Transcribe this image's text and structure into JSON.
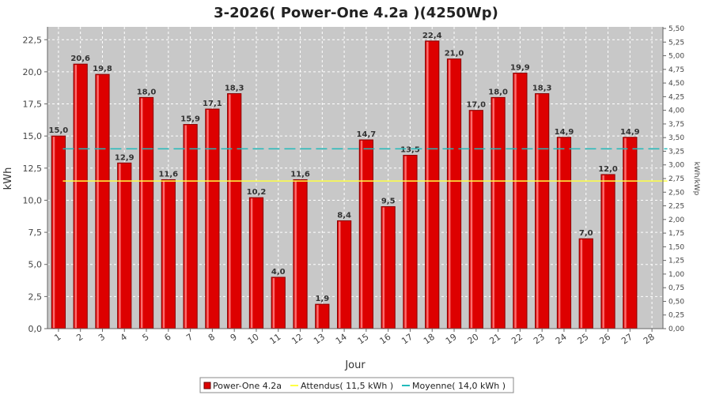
{
  "colors": {
    "plot_bg": "#c8c8c8",
    "bar": "#dd0000",
    "bar_dark": "#8a0000",
    "bar_light": "#ff8080",
    "expected_line": "#ffff44",
    "average_line": "#22bbbb",
    "grid": "#ffffff"
  },
  "chart_data": {
    "type": "bar",
    "title": "3-2026( Power-One 4.2a )(4250Wp)",
    "xlabel": "Jour",
    "ylabel": "kWh",
    "ylabel_right": "kWh/kWp",
    "categories": [
      "1",
      "2",
      "3",
      "4",
      "5",
      "6",
      "7",
      "8",
      "9",
      "10",
      "11",
      "12",
      "13",
      "14",
      "15",
      "16",
      "17",
      "18",
      "19",
      "20",
      "21",
      "22",
      "23",
      "24",
      "25",
      "26",
      "27",
      "28"
    ],
    "series": [
      {
        "name": "Power-One 4.2a",
        "values": [
          15.0,
          20.6,
          19.8,
          12.9,
          18.0,
          11.6,
          15.9,
          17.1,
          18.3,
          10.2,
          4.0,
          11.6,
          1.9,
          8.4,
          14.7,
          9.5,
          13.5,
          22.4,
          21.0,
          17.0,
          18.0,
          19.9,
          18.3,
          14.9,
          7.0,
          12.0,
          14.9,
          null
        ],
        "labels": [
          "15,0",
          "20,6",
          "19,8",
          "12,9",
          "18,0",
          "11,6",
          "15,9",
          "17,1",
          "18,3",
          "10,2",
          "4,0",
          "11,6",
          "1,9",
          "8,4",
          "14,7",
          "9,5",
          "13,5",
          "22,4",
          "21,0",
          "17,0",
          "18,0",
          "19,9",
          "18,3",
          "14,9",
          "7,0",
          "12,0",
          "14,9",
          ""
        ]
      }
    ],
    "reference_lines": [
      {
        "name": "Attendus",
        "value": 11.5,
        "legend": "Attendus( 11,5 kWh )"
      },
      {
        "name": "Moyenne",
        "value": 14.0,
        "legend": "Moyenne( 14,0 kWh )"
      }
    ],
    "ylim": [
      0,
      23.5
    ],
    "yticks": [
      "0,0",
      "2,5",
      "5,0",
      "7,5",
      "10,0",
      "12,5",
      "15,0",
      "17,5",
      "20,0",
      "22,5"
    ],
    "ytick_values": [
      0,
      2.5,
      5,
      7.5,
      10,
      12.5,
      15,
      17.5,
      20,
      22.5
    ],
    "ylim_right": [
      0,
      5.529
    ],
    "yticks_right": [
      "0,00",
      "0,25",
      "0,50",
      "0,75",
      "1,00",
      "1,25",
      "1,50",
      "1,75",
      "2,00",
      "2,25",
      "2,50",
      "2,75",
      "3,00",
      "3,25",
      "3,50",
      "3,75",
      "4,00",
      "4,25",
      "4,50",
      "4,75",
      "5,00",
      "5,25",
      "5,50"
    ],
    "ytick_right_values": [
      0,
      0.25,
      0.5,
      0.75,
      1,
      1.25,
      1.5,
      1.75,
      2,
      2.25,
      2.5,
      2.75,
      3,
      3.25,
      3.5,
      3.75,
      4,
      4.25,
      4.5,
      4.75,
      5,
      5.25,
      5.5
    ],
    "grid": true,
    "legend_position": "bottom"
  }
}
